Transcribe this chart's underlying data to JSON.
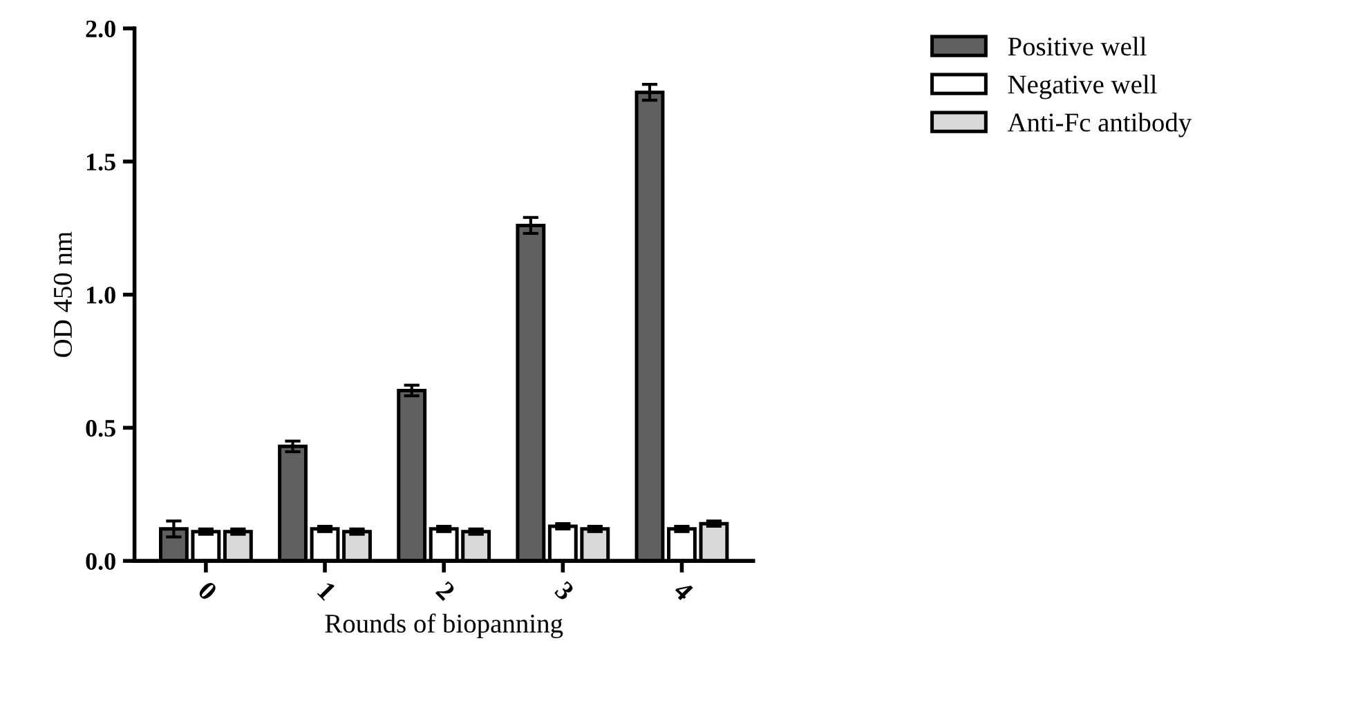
{
  "chart_data": {
    "type": "bar",
    "xlabel": "Rounds of biopanning",
    "ylabel": "OD 450 nm",
    "categories": [
      "0",
      "1",
      "2",
      "3",
      "4"
    ],
    "series": [
      {
        "name": "Positive well",
        "color": "#606060",
        "values": [
          0.12,
          0.43,
          0.64,
          1.26,
          1.76
        ],
        "errors": [
          0.03,
          0.02,
          0.02,
          0.03,
          0.03
        ]
      },
      {
        "name": "Negative well",
        "color": "#ffffff",
        "values": [
          0.11,
          0.12,
          0.12,
          0.13,
          0.12
        ],
        "errors": [
          0.01,
          0.01,
          0.01,
          0.01,
          0.01
        ]
      },
      {
        "name": "Anti-Fc antibody",
        "color": "#d9d9d9",
        "values": [
          0.11,
          0.11,
          0.11,
          0.12,
          0.14
        ],
        "errors": [
          0.01,
          0.01,
          0.01,
          0.01,
          0.01
        ]
      }
    ],
    "ylim": [
      0,
      2.0
    ],
    "yticks": [
      {
        "value": 0,
        "label": "0.0"
      },
      {
        "value": 0.5,
        "label": "0.5"
      },
      {
        "value": 1.0,
        "label": "1.0"
      },
      {
        "value": 1.5,
        "label": "1.5"
      },
      {
        "value": 2.0,
        "label": "2.0"
      }
    ],
    "grid": false,
    "legend": "top right"
  }
}
